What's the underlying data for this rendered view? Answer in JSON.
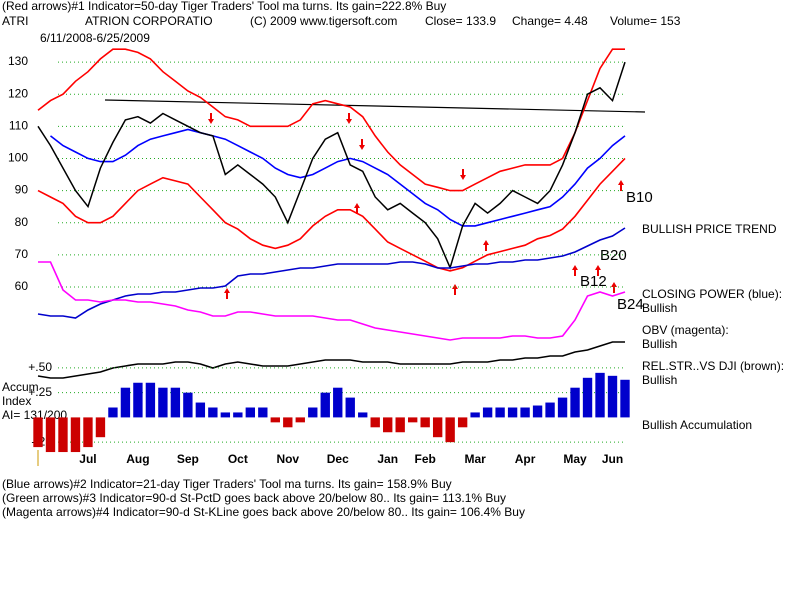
{
  "chart_data": [
    {
      "type": "line",
      "title": "(Red arrows)#1 Indicator=50-day Tiger Traders' Tool ma turns. Its gain=222.8% Buy",
      "subtitle": "6/11/2008-6/25/2009",
      "header": [
        "ATRI",
        "ATRION CORPORATIO",
        "(C) 2009 www.tigersoft.com",
        "Close= 133.9",
        "Change= 4.48",
        "Volume= 153"
      ],
      "annotations": [
        "B10",
        "BULLISH PRICE TREND",
        "B20",
        "B12",
        "B24"
      ],
      "categories": [
        null,
        null,
        null,
        null,
        "Jul",
        null,
        null,
        null,
        "Aug",
        null,
        null,
        null,
        "Sep",
        null,
        null,
        null,
        "Oct",
        null,
        null,
        null,
        "Nov",
        null,
        null,
        null,
        "Dec",
        null,
        null,
        null,
        "Jan",
        null,
        null,
        "Feb",
        null,
        null,
        null,
        "Mar",
        null,
        null,
        null,
        "Apr",
        null,
        null,
        null,
        "May",
        null,
        null,
        "Jun",
        null
      ],
      "ylim": [
        55,
        135
      ],
      "yticks": [
        60,
        70,
        80,
        90,
        100,
        110,
        120,
        130
      ],
      "grid": true,
      "series": [
        {
          "color": "#ff0000",
          "values": [
            115,
            118,
            120,
            124,
            127,
            131,
            134,
            134,
            133,
            131,
            127,
            124,
            121,
            119,
            116,
            113,
            112,
            110,
            110,
            110,
            110,
            112,
            117,
            118,
            117,
            116,
            113,
            107,
            102,
            98,
            95,
            92,
            91,
            90,
            90,
            92,
            94,
            96,
            97,
            98,
            98,
            98,
            100,
            108,
            118,
            128,
            134,
            134
          ]
        },
        {
          "color": "#ff0000",
          "values": [
            90,
            88,
            86,
            82,
            80,
            80,
            82,
            86,
            90,
            92,
            94,
            93,
            92,
            88,
            84,
            80,
            78,
            75,
            73,
            72,
            73,
            75,
            79,
            82,
            84,
            84,
            82,
            78,
            74,
            72,
            70,
            68,
            66,
            65,
            66,
            68,
            70,
            71,
            72,
            73,
            75,
            76,
            78,
            82,
            87,
            92,
            96,
            100
          ]
        },
        {
          "color": "#0000ff",
          "values": [
            null,
            107,
            104,
            102,
            100,
            99,
            99,
            101,
            104,
            106,
            107,
            108,
            109,
            108,
            107,
            106,
            104,
            102,
            100,
            97,
            95,
            94,
            95,
            97,
            99,
            100,
            99,
            97,
            95,
            92,
            89,
            86,
            84,
            81,
            79,
            79,
            80,
            81,
            82,
            83,
            84,
            85,
            88,
            92,
            97,
            100,
            104,
            107
          ]
        },
        {
          "color": "#000000",
          "values": [
            110,
            104,
            97,
            90,
            85,
            97,
            105,
            112,
            113,
            111,
            114,
            112,
            110,
            108,
            107,
            95,
            98,
            95,
            92,
            88,
            80,
            90,
            100,
            106,
            108,
            98,
            96,
            88,
            84,
            86,
            83,
            80,
            75,
            66,
            79,
            86,
            83,
            86,
            90,
            88,
            86,
            90,
            98,
            108,
            120,
            122,
            118,
            130
          ]
        }
      ]
    },
    {
      "type": "line",
      "ylim": [
        0,
        100
      ],
      "series": [
        {
          "name": "CLOSING POWER (blue):",
          "status": "Bullish",
          "color": "#0000cc",
          "values": [
            43,
            42,
            42,
            41,
            45,
            48,
            50,
            52,
            53,
            53,
            54,
            54,
            55,
            56,
            56,
            57,
            62,
            63,
            63,
            64,
            65,
            66,
            66,
            67,
            68,
            68,
            68,
            68,
            68,
            69,
            69,
            68,
            66,
            66,
            67,
            68,
            68,
            69,
            69,
            70,
            70,
            71,
            72,
            74,
            77,
            80,
            82,
            86
          ]
        },
        {
          "name": "OBV (magenta):",
          "status": "Bullish",
          "color": "#ff00ff",
          "values": [
            69,
            69,
            55,
            50,
            50,
            49,
            50,
            50,
            49,
            49,
            48,
            47,
            45,
            44,
            42,
            42,
            44,
            44,
            43,
            42,
            42,
            42,
            42,
            41,
            40,
            40,
            38,
            36,
            35,
            34,
            33,
            32,
            31,
            30,
            31,
            31,
            31,
            31,
            32,
            32,
            31,
            31,
            32,
            40,
            52,
            54,
            52,
            54
          ]
        },
        {
          "name": "REL.STR..VS DJI (brown):",
          "status": "Bullish",
          "color": "#000000",
          "values": [
            12,
            11,
            11,
            12,
            13,
            14,
            16,
            17,
            18,
            18,
            18,
            19,
            19,
            18,
            16,
            18,
            19,
            18,
            17,
            17,
            17,
            18,
            19,
            20,
            20,
            20,
            19,
            19,
            19,
            18,
            18,
            18,
            18,
            18,
            19,
            19,
            19,
            20,
            20,
            21,
            21,
            22,
            22,
            24,
            25,
            27,
            29,
            29
          ]
        }
      ]
    },
    {
      "type": "bar",
      "label_lines": [
        "Accum",
        "Index",
        "AI= 131/200"
      ],
      "status": "Bullish Accumulation",
      "pos_color": "#0000cc",
      "neg_color": "#cc0000",
      "ylim": [
        -0.4,
        0.6
      ],
      "yticks": [
        {
          "value": 0.5,
          "label": "+.50"
        },
        {
          "value": 0.25,
          "label": "+.25"
        },
        {
          "value": -0.25,
          "label": "-.25"
        }
      ],
      "grid": true,
      "values": [
        -0.3,
        -0.35,
        -0.35,
        -0.35,
        -0.3,
        -0.2,
        0.1,
        0.3,
        0.35,
        0.35,
        0.3,
        0.3,
        0.25,
        0.15,
        0.1,
        0.05,
        0.05,
        0.1,
        0.1,
        -0.05,
        -0.1,
        -0.05,
        0.1,
        0.25,
        0.3,
        0.2,
        0.05,
        -0.1,
        -0.15,
        -0.15,
        -0.05,
        -0.1,
        -0.2,
        -0.25,
        -0.1,
        0.05,
        0.1,
        0.1,
        0.1,
        0.1,
        0.12,
        0.15,
        0.2,
        0.3,
        0.4,
        0.45,
        0.42,
        0.38
      ]
    }
  ],
  "notes": [
    "(Blue arrows)#2 Indicator=21-day Tiger Traders' Tool ma turns. Its gain= 158.9% Buy",
    "(Green arrows)#3 Indicator=90-d St-PctD goes back above 20/below 80.. Its gain= 113.1% Buy",
    "(Magenta arrows)#4 Indicator=90-d St-KLine goes back above 20/below 80.. Its gain= 106.4% Buy"
  ]
}
